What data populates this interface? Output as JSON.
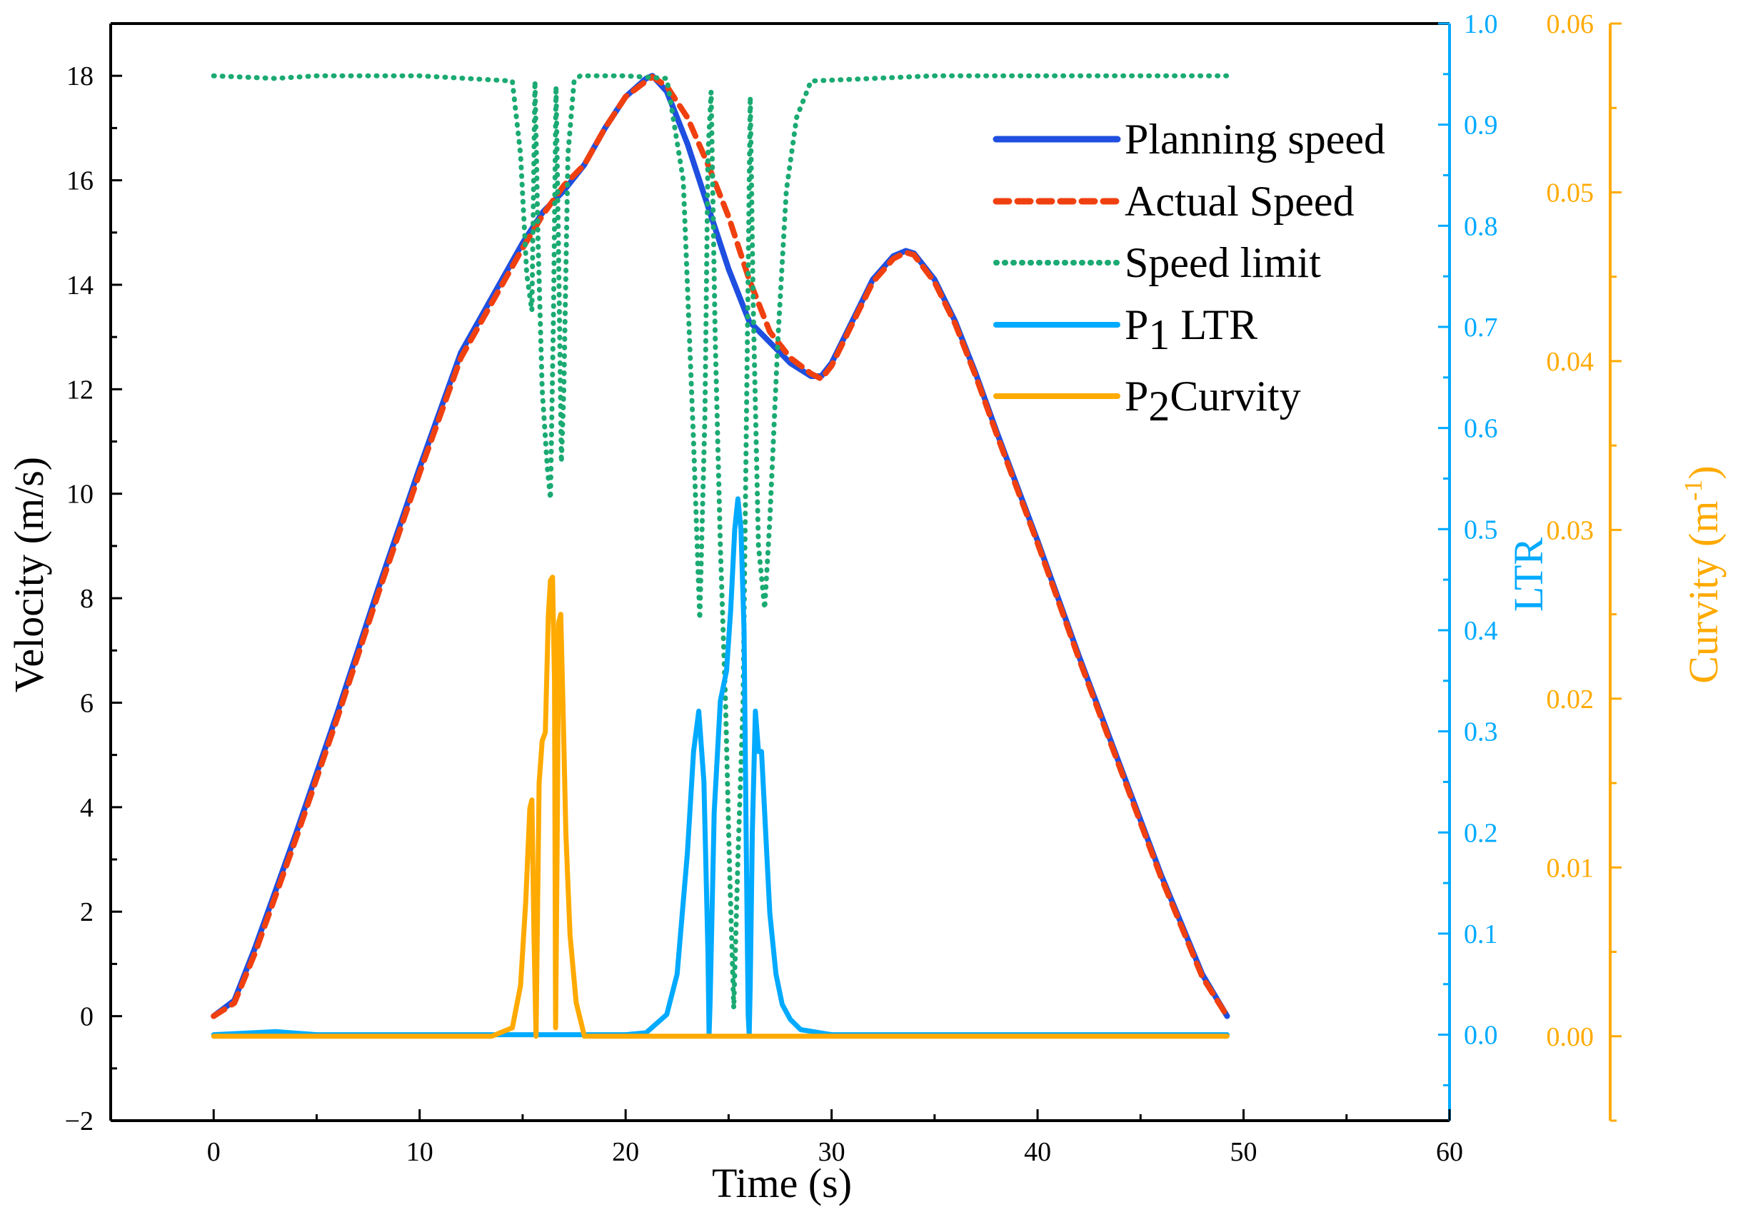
{
  "chart_data": {
    "type": "line",
    "xlabel": "Time (s)",
    "x_axis": {
      "range": [
        -5,
        60
      ],
      "ticks": [
        0,
        10,
        20,
        30,
        40,
        50,
        60
      ],
      "minor_step": 5
    },
    "y_axes": {
      "velocity": {
        "label": "Velocity (m/s)",
        "range": [
          -2,
          19
        ],
        "ticks": [
          -2,
          0,
          2,
          4,
          6,
          8,
          10,
          12,
          14,
          16,
          18
        ],
        "tick_labels": [
          "−2",
          "0",
          "2",
          "4",
          "6",
          "8",
          "10",
          "12",
          "14",
          "16",
          "18"
        ],
        "minor_step": 1,
        "color": "#000000"
      },
      "ltr": {
        "label": "LTR",
        "range": [
          -0.085,
          1.0
        ],
        "ticks": [
          0.0,
          0.1,
          0.2,
          0.3,
          0.4,
          0.5,
          0.6,
          0.7,
          0.8,
          0.9,
          1.0
        ],
        "tick_labels": [
          "0.0",
          "0.1",
          "0.2",
          "0.3",
          "0.4",
          "0.5",
          "0.6",
          "0.7",
          "0.8",
          "0.9",
          "1.0"
        ],
        "minor_step": 0.05,
        "color": "#00aaff"
      },
      "curvity": {
        "label_main": "Curvity (m",
        "label_sup": "-1",
        "label_end": ")",
        "range": [
          -0.005,
          0.06
        ],
        "ticks": [
          0.0,
          0.01,
          0.02,
          0.03,
          0.04,
          0.05,
          0.06
        ],
        "tick_labels": [
          "0.00",
          "0.01",
          "0.02",
          "0.03",
          "0.04",
          "0.05",
          "0.06"
        ],
        "minor_step": 0.005,
        "color": "#ffaa00"
      }
    },
    "legend": {
      "position": "top-right",
      "entries": [
        {
          "key": "planning",
          "text": "Planning speed"
        },
        {
          "key": "actual",
          "text": "Actual Speed"
        },
        {
          "key": "limit",
          "text": "Speed limit"
        },
        {
          "key": "ltr",
          "prefix": "P",
          "sub": "1",
          "text": " LTR"
        },
        {
          "key": "curv",
          "prefix": "P",
          "sub": "2",
          "text": "Curvity"
        }
      ]
    },
    "series": [
      {
        "key": "planning",
        "name": "Planning speed",
        "axis": "velocity",
        "color": "#1f4fe0",
        "style": "solid",
        "x": [
          0,
          1,
          2,
          3,
          4,
          6,
          8,
          10,
          12,
          14,
          15,
          16,
          17,
          18,
          19,
          20,
          21,
          21.3,
          22,
          23,
          24,
          25,
          26,
          27,
          28,
          29,
          29.5,
          30,
          31,
          32,
          33,
          33.6,
          34,
          35,
          36,
          37,
          38,
          40,
          42,
          44,
          46,
          48,
          49.2
        ],
        "y": [
          0,
          0.3,
          1.3,
          2.4,
          3.5,
          5.8,
          8.2,
          10.5,
          12.7,
          14.1,
          14.8,
          15.4,
          15.8,
          16.3,
          17.0,
          17.6,
          17.95,
          18.0,
          17.7,
          16.7,
          15.5,
          14.3,
          13.3,
          12.9,
          12.5,
          12.25,
          12.25,
          12.5,
          13.3,
          14.1,
          14.55,
          14.65,
          14.6,
          14.1,
          13.3,
          12.3,
          11.2,
          9.1,
          6.9,
          4.8,
          2.7,
          0.8,
          0.0
        ]
      },
      {
        "key": "actual",
        "name": "Actual Speed",
        "axis": "velocity",
        "color": "#f04010",
        "style": "dashed",
        "x": [
          0,
          1,
          2,
          3,
          4,
          6,
          8,
          10,
          12,
          14,
          15,
          16,
          17,
          18,
          19,
          20,
          21,
          21.3,
          22,
          23,
          24,
          25,
          26,
          27,
          28,
          29,
          29.5,
          30,
          31,
          32,
          33,
          33.6,
          34,
          35,
          36,
          37,
          38,
          40,
          42,
          44,
          46,
          48,
          49.2
        ],
        "y": [
          0,
          0.25,
          1.2,
          2.3,
          3.4,
          5.7,
          8.1,
          10.4,
          12.6,
          14.0,
          14.7,
          15.35,
          15.9,
          16.3,
          17.0,
          17.6,
          17.9,
          17.98,
          17.8,
          17.2,
          16.3,
          15.3,
          14.1,
          13.1,
          12.6,
          12.3,
          12.2,
          12.45,
          13.25,
          14.05,
          14.5,
          14.62,
          14.57,
          14.05,
          13.25,
          12.25,
          11.15,
          9.05,
          6.85,
          4.75,
          2.65,
          0.75,
          0.0
        ]
      },
      {
        "key": "limit",
        "name": "Speed limit",
        "axis": "velocity",
        "color": "#1aaa72",
        "style": "dotted",
        "x": [
          0,
          3,
          5,
          10,
          14.5,
          14.9,
          15.2,
          15.45,
          15.6,
          15.75,
          15.95,
          16.2,
          16.35,
          16.5,
          16.62,
          16.75,
          16.88,
          17.0,
          17.2,
          17.5,
          17.8,
          18.2,
          20,
          22,
          22.8,
          23.3,
          23.6,
          23.85,
          24.0,
          24.15,
          24.35,
          24.6,
          24.85,
          25.05,
          25.25,
          25.45,
          25.7,
          25.9,
          26.05,
          26.2,
          26.45,
          26.75,
          27.0,
          27.4,
          27.8,
          28.3,
          29,
          35,
          40,
          49.2
        ],
        "y": [
          18,
          17.95,
          18,
          18,
          17.9,
          16.5,
          14.2,
          13.5,
          17.9,
          14.8,
          12.0,
          10.5,
          9.9,
          13.5,
          17.8,
          14.5,
          10.6,
          12.0,
          16.5,
          17.9,
          18,
          18,
          18,
          17.95,
          16.0,
          11.0,
          7.6,
          11.5,
          16.5,
          17.7,
          13.0,
          9.0,
          6.0,
          2.8,
          0.15,
          3.0,
          6.0,
          12.5,
          17.6,
          13.5,
          9.0,
          7.8,
          9.5,
          13.0,
          15.8,
          17.2,
          17.9,
          18,
          18,
          18
        ]
      },
      {
        "key": "ltr",
        "name": "P1 LTR",
        "axis": "ltr",
        "color": "#00aaff",
        "style": "solid",
        "x": [
          0,
          3,
          5,
          10,
          15,
          18,
          20,
          21,
          22,
          22.5,
          23.0,
          23.3,
          23.55,
          23.8,
          24.0,
          24.05,
          24.1,
          24.3,
          24.6,
          24.9,
          25.1,
          25.3,
          25.45,
          25.6,
          25.75,
          25.85,
          25.95,
          26.0,
          26.05,
          26.15,
          26.3,
          26.45,
          26.6,
          26.8,
          27.0,
          27.3,
          27.6,
          28.0,
          28.5,
          30,
          35,
          40,
          45,
          49.2
        ],
        "y": [
          0.0,
          0.003,
          0.0,
          0.0,
          0.0,
          0.0,
          0.0,
          0.002,
          0.02,
          0.06,
          0.18,
          0.28,
          0.32,
          0.25,
          0.08,
          0.0,
          0.03,
          0.22,
          0.33,
          0.36,
          0.42,
          0.5,
          0.53,
          0.5,
          0.4,
          0.2,
          0.02,
          0.0,
          0.05,
          0.2,
          0.32,
          0.28,
          0.28,
          0.2,
          0.12,
          0.06,
          0.03,
          0.015,
          0.005,
          0.0,
          0.0,
          0.0,
          0.0,
          0.0
        ]
      },
      {
        "key": "curv",
        "name": "P2Curvity",
        "axis": "curvity",
        "color": "#ffaa00",
        "style": "solid",
        "x": [
          0,
          10,
          13.5,
          14.5,
          14.9,
          15.15,
          15.35,
          15.45,
          15.55,
          15.65,
          15.8,
          15.95,
          16.1,
          16.25,
          16.35,
          16.45,
          16.55,
          16.6,
          16.68,
          16.75,
          16.85,
          16.95,
          17.1,
          17.3,
          17.6,
          18.0,
          20,
          30,
          40,
          49.2
        ],
        "y": [
          0,
          0,
          0,
          0.0005,
          0.003,
          0.008,
          0.0135,
          0.014,
          0.006,
          0.0,
          0.015,
          0.0175,
          0.018,
          0.025,
          0.027,
          0.0272,
          0.021,
          0.0005,
          0.012,
          0.0245,
          0.025,
          0.02,
          0.012,
          0.006,
          0.002,
          0.0,
          0,
          0,
          0,
          0
        ]
      }
    ]
  }
}
